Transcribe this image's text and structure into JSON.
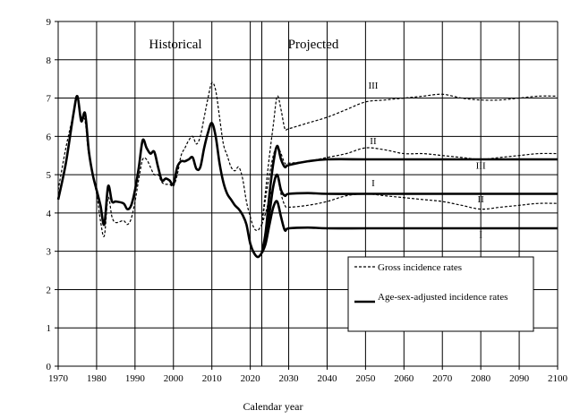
{
  "chart_data": {
    "type": "line",
    "title": "",
    "xlabel": "Calendar year",
    "ylabel": "",
    "xlim": [
      1970,
      2100
    ],
    "ylim": [
      0,
      9
    ],
    "x_ticks": [
      1970,
      1980,
      1990,
      2000,
      2010,
      2020,
      2030,
      2040,
      2050,
      2060,
      2070,
      2080,
      2090,
      2100
    ],
    "y_ticks": [
      0,
      1,
      2,
      3,
      4,
      5,
      6,
      7,
      8,
      9
    ],
    "grid": true,
    "region_labels": [
      "Historical",
      "Projected"
    ],
    "projection_start": 2023,
    "legend": {
      "placement": "lower-right",
      "entries": [
        {
          "label": "Gross incidence rates",
          "style": "dashed"
        },
        {
          "label": "Age-sex-adjusted incidence rates",
          "style": "solid"
        }
      ]
    },
    "historical": {
      "gross": [
        [
          1970,
          4.6
        ],
        [
          1972,
          5.7
        ],
        [
          1974,
          6.6
        ],
        [
          1975,
          7.0
        ],
        [
          1976,
          6.5
        ],
        [
          1977,
          6.4
        ],
        [
          1978,
          5.5
        ],
        [
          1980,
          4.5
        ],
        [
          1981,
          3.8
        ],
        [
          1982,
          3.4
        ],
        [
          1983,
          4.4
        ],
        [
          1984,
          3.9
        ],
        [
          1985,
          3.75
        ],
        [
          1987,
          3.8
        ],
        [
          1988,
          3.7
        ],
        [
          1989,
          3.85
        ],
        [
          1990,
          4.3
        ],
        [
          1991,
          4.9
        ],
        [
          1992,
          5.4
        ],
        [
          1993,
          5.4
        ],
        [
          1994,
          5.2
        ],
        [
          1995,
          5.0
        ],
        [
          1996,
          5.0
        ],
        [
          1997,
          4.8
        ],
        [
          1998,
          4.75
        ],
        [
          1999,
          4.75
        ],
        [
          2000,
          4.7
        ],
        [
          2001,
          5.0
        ],
        [
          2002,
          5.5
        ],
        [
          2003,
          5.7
        ],
        [
          2004,
          5.9
        ],
        [
          2005,
          6.0
        ],
        [
          2006,
          5.8
        ],
        [
          2007,
          6.0
        ],
        [
          2008,
          6.5
        ],
        [
          2009,
          7.0
        ],
        [
          2010,
          7.4
        ],
        [
          2011,
          7.2
        ],
        [
          2012,
          6.5
        ],
        [
          2013,
          5.8
        ],
        [
          2014,
          5.5
        ],
        [
          2015,
          5.2
        ],
        [
          2016,
          5.1
        ],
        [
          2017,
          5.2
        ],
        [
          2018,
          4.9
        ],
        [
          2019,
          4.3
        ],
        [
          2020,
          3.9
        ],
        [
          2021,
          3.6
        ],
        [
          2022,
          3.55
        ],
        [
          2023,
          3.7
        ]
      ],
      "adjusted": [
        [
          1970,
          4.35
        ],
        [
          1972,
          5.3
        ],
        [
          1974,
          6.6
        ],
        [
          1975,
          7.05
        ],
        [
          1976,
          6.4
        ],
        [
          1977,
          6.6
        ],
        [
          1978,
          5.6
        ],
        [
          1979,
          5.0
        ],
        [
          1980,
          4.6
        ],
        [
          1981,
          4.2
        ],
        [
          1982,
          3.7
        ],
        [
          1983,
          4.7
        ],
        [
          1984,
          4.3
        ],
        [
          1985,
          4.3
        ],
        [
          1987,
          4.25
        ],
        [
          1988,
          4.1
        ],
        [
          1989,
          4.2
        ],
        [
          1990,
          4.6
        ],
        [
          1991,
          5.2
        ],
        [
          1992,
          5.9
        ],
        [
          1993,
          5.7
        ],
        [
          1994,
          5.55
        ],
        [
          1995,
          5.6
        ],
        [
          1996,
          5.2
        ],
        [
          1997,
          4.85
        ],
        [
          1998,
          4.9
        ],
        [
          1999,
          4.85
        ],
        [
          2000,
          4.75
        ],
        [
          2001,
          5.2
        ],
        [
          2002,
          5.35
        ],
        [
          2003,
          5.35
        ],
        [
          2004,
          5.4
        ],
        [
          2005,
          5.45
        ],
        [
          2006,
          5.15
        ],
        [
          2007,
          5.2
        ],
        [
          2008,
          5.7
        ],
        [
          2009,
          6.1
        ],
        [
          2010,
          6.35
        ],
        [
          2011,
          6.0
        ],
        [
          2012,
          5.3
        ],
        [
          2013,
          4.8
        ],
        [
          2014,
          4.5
        ],
        [
          2015,
          4.35
        ],
        [
          2016,
          4.2
        ],
        [
          2017,
          4.1
        ],
        [
          2018,
          3.95
        ],
        [
          2019,
          3.7
        ],
        [
          2020,
          3.2
        ],
        [
          2021,
          2.95
        ],
        [
          2022,
          2.85
        ],
        [
          2023,
          2.95
        ]
      ]
    },
    "series": [
      {
        "name": "III",
        "style": "dashed",
        "kind": "gross",
        "points": [
          [
            2023,
            3.7
          ],
          [
            2024,
            4.6
          ],
          [
            2025,
            5.5
          ],
          [
            2026,
            6.3
          ],
          [
            2027,
            7.05
          ],
          [
            2028,
            6.7
          ],
          [
            2029,
            6.2
          ],
          [
            2030,
            6.2
          ],
          [
            2035,
            6.35
          ],
          [
            2040,
            6.5
          ],
          [
            2045,
            6.7
          ],
          [
            2050,
            6.9
          ],
          [
            2055,
            6.95
          ],
          [
            2060,
            7.0
          ],
          [
            2065,
            7.05
          ],
          [
            2070,
            7.1
          ],
          [
            2075,
            7.0
          ],
          [
            2080,
            6.95
          ],
          [
            2085,
            6.95
          ],
          [
            2090,
            7.0
          ],
          [
            2095,
            7.05
          ],
          [
            2100,
            7.05
          ]
        ]
      },
      {
        "name": "II",
        "style": "dashed",
        "kind": "gross",
        "points": [
          [
            2023,
            3.7
          ],
          [
            2024,
            4.4
          ],
          [
            2025,
            5.0
          ],
          [
            2026,
            5.5
          ],
          [
            2027,
            5.75
          ],
          [
            2028,
            5.55
          ],
          [
            2029,
            5.3
          ],
          [
            2030,
            5.3
          ],
          [
            2035,
            5.35
          ],
          [
            2040,
            5.45
          ],
          [
            2045,
            5.55
          ],
          [
            2050,
            5.7
          ],
          [
            2055,
            5.65
          ],
          [
            2060,
            5.55
          ],
          [
            2065,
            5.55
          ],
          [
            2070,
            5.5
          ],
          [
            2075,
            5.45
          ],
          [
            2080,
            5.4
          ],
          [
            2085,
            5.45
          ],
          [
            2090,
            5.5
          ],
          [
            2095,
            5.55
          ],
          [
            2100,
            5.55
          ]
        ]
      },
      {
        "name": "I",
        "style": "dashed",
        "kind": "gross",
        "points": [
          [
            2023,
            3.7
          ],
          [
            2024,
            4.0
          ],
          [
            2025,
            4.4
          ],
          [
            2026,
            4.7
          ],
          [
            2027,
            4.95
          ],
          [
            2028,
            4.5
          ],
          [
            2029,
            4.2
          ],
          [
            2030,
            4.15
          ],
          [
            2035,
            4.2
          ],
          [
            2040,
            4.3
          ],
          [
            2045,
            4.45
          ],
          [
            2050,
            4.5
          ],
          [
            2055,
            4.45
          ],
          [
            2060,
            4.4
          ],
          [
            2065,
            4.35
          ],
          [
            2070,
            4.3
          ],
          [
            2075,
            4.2
          ],
          [
            2080,
            4.1
          ],
          [
            2085,
            4.15
          ],
          [
            2090,
            4.2
          ],
          [
            2095,
            4.25
          ],
          [
            2100,
            4.25
          ]
        ]
      },
      {
        "name": "III",
        "style": "solid",
        "kind": "adjusted",
        "points": [
          [
            2023,
            2.95
          ],
          [
            2024,
            3.5
          ],
          [
            2025,
            4.5
          ],
          [
            2026,
            5.3
          ],
          [
            2027,
            5.75
          ],
          [
            2028,
            5.4
          ],
          [
            2029,
            5.2
          ],
          [
            2030,
            5.25
          ],
          [
            2035,
            5.35
          ],
          [
            2040,
            5.4
          ],
          [
            2050,
            5.4
          ],
          [
            2060,
            5.4
          ],
          [
            2070,
            5.4
          ],
          [
            2080,
            5.4
          ],
          [
            2090,
            5.4
          ],
          [
            2100,
            5.4
          ]
        ]
      },
      {
        "name": "II",
        "style": "solid",
        "kind": "adjusted",
        "points": [
          [
            2023,
            2.95
          ],
          [
            2024,
            3.4
          ],
          [
            2025,
            4.0
          ],
          [
            2026,
            4.7
          ],
          [
            2027,
            5.0
          ],
          [
            2028,
            4.6
          ],
          [
            2029,
            4.45
          ],
          [
            2030,
            4.5
          ],
          [
            2035,
            4.52
          ],
          [
            2040,
            4.5
          ],
          [
            2050,
            4.5
          ],
          [
            2060,
            4.5
          ],
          [
            2070,
            4.5
          ],
          [
            2080,
            4.5
          ],
          [
            2090,
            4.5
          ],
          [
            2100,
            4.5
          ]
        ]
      },
      {
        "name": "I",
        "style": "solid",
        "kind": "adjusted",
        "points": [
          [
            2023,
            2.95
          ],
          [
            2024,
            3.2
          ],
          [
            2025,
            3.7
          ],
          [
            2026,
            4.15
          ],
          [
            2027,
            4.3
          ],
          [
            2028,
            3.9
          ],
          [
            2029,
            3.55
          ],
          [
            2030,
            3.6
          ],
          [
            2035,
            3.62
          ],
          [
            2040,
            3.6
          ],
          [
            2050,
            3.6
          ],
          [
            2060,
            3.6
          ],
          [
            2070,
            3.6
          ],
          [
            2080,
            3.6
          ],
          [
            2090,
            3.6
          ],
          [
            2100,
            3.6
          ]
        ]
      }
    ],
    "series_labels": [
      {
        "text": "III",
        "x": 2052,
        "y": 7.25
      },
      {
        "text": "II",
        "x": 2052,
        "y": 5.8
      },
      {
        "text": "I",
        "x": 2052,
        "y": 4.7
      },
      {
        "text": "III",
        "x": 2080,
        "y": 5.15
      },
      {
        "text": "II",
        "x": 2080,
        "y": 4.28
      },
      {
        "text": "I",
        "x": 2080,
        "y": 3.35
      }
    ]
  }
}
